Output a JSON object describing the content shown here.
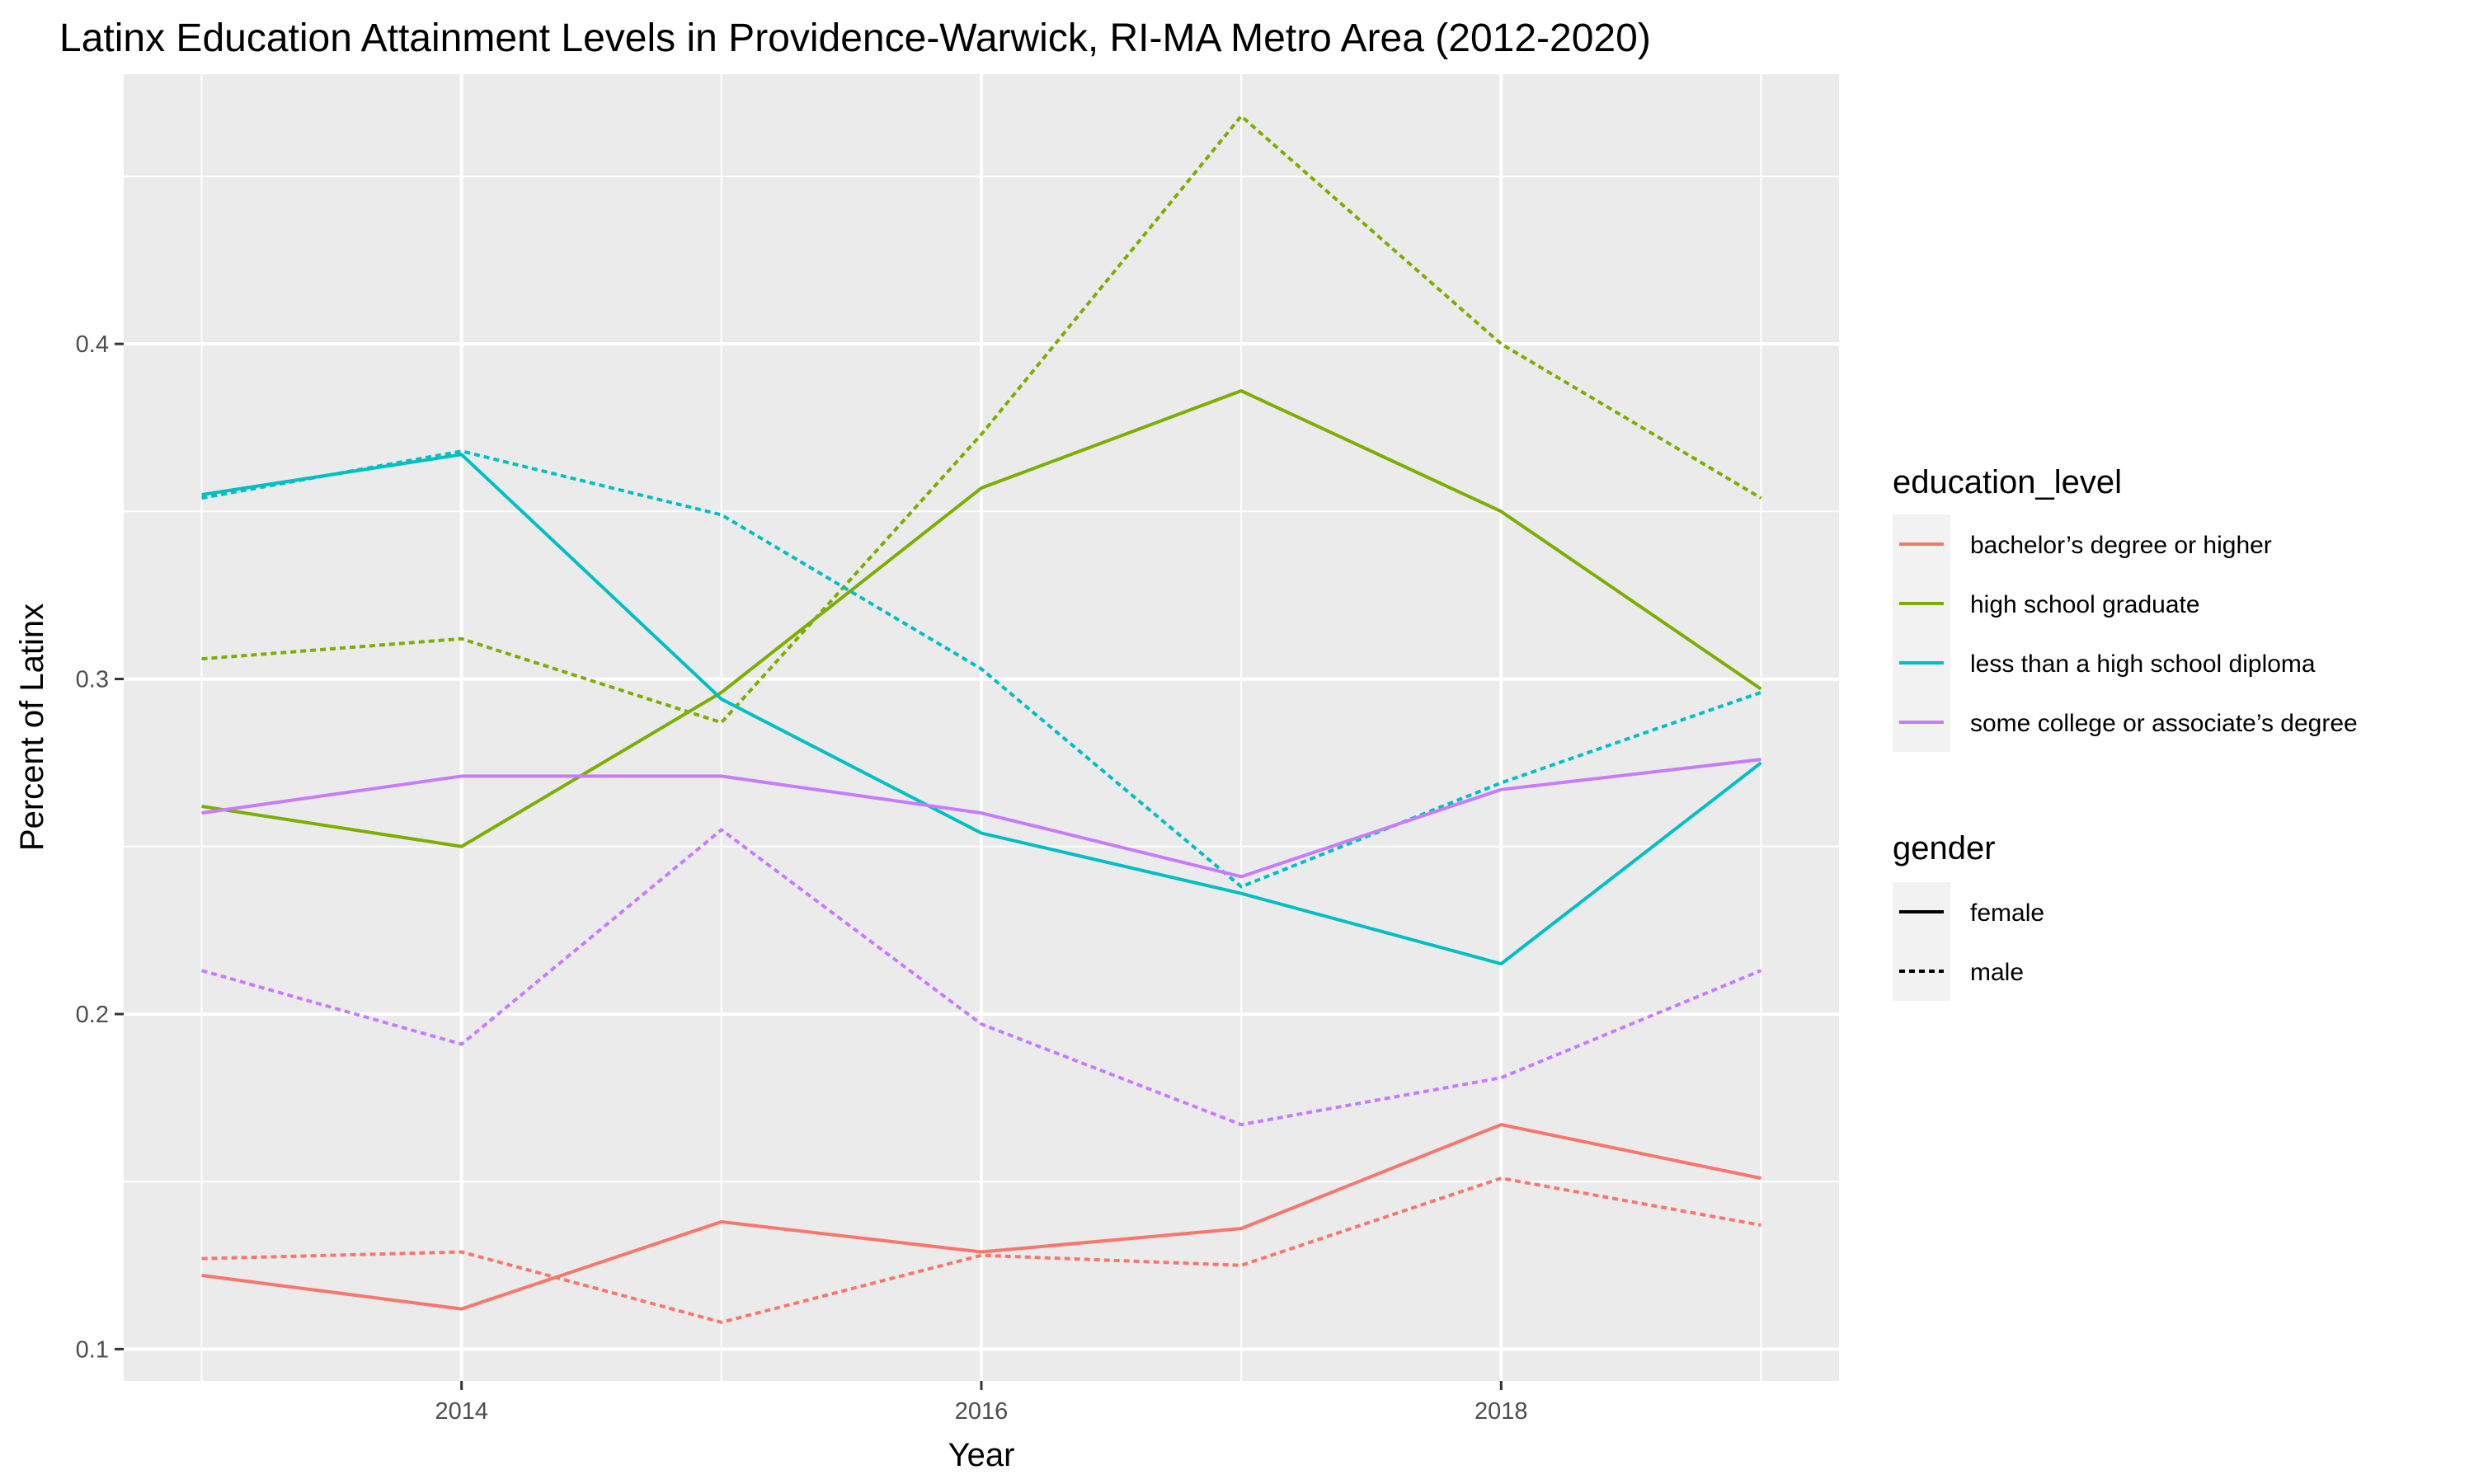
{
  "chart_data": {
    "type": "line",
    "title": "Latinx Education Attainment Levels in Providence-Warwick, RI-MA Metro Area (2012-2020)",
    "xlabel": "Year",
    "ylabel": "Percent of Latinx",
    "x": [
      2013,
      2014,
      2015,
      2016,
      2017,
      2018,
      2019
    ],
    "xlim": [
      2012.7,
      2019.3
    ],
    "ylim": [
      0.0905,
      0.4805
    ],
    "x_ticks": [
      2014,
      2016,
      2018
    ],
    "x_tick_labels": [
      "2014",
      "2016",
      "2018"
    ],
    "y_ticks": [
      0.1,
      0.2,
      0.3,
      0.4
    ],
    "y_tick_labels": [
      "0.1",
      "0.2",
      "0.3",
      "0.4"
    ],
    "grid": true,
    "legend_position": "right",
    "legends": [
      {
        "title": "education_level",
        "entries": [
          {
            "label": "bachelor’s degree or higher",
            "color": "#F8766D"
          },
          {
            "label": "high school graduate",
            "color": "#7CAE00"
          },
          {
            "label": "less than a high school diploma",
            "color": "#00BFC4"
          },
          {
            "label": "some college or associate’s degree",
            "color": "#C77CFF"
          }
        ]
      },
      {
        "title": "gender",
        "entries": [
          {
            "label": "female",
            "dash": "solid"
          },
          {
            "label": "male",
            "dash": "dotted"
          }
        ]
      }
    ],
    "series": [
      {
        "education_level": "bachelor’s degree or higher",
        "gender": "female",
        "color": "#F8766D",
        "dash": "solid",
        "values": [
          0.122,
          0.112,
          0.138,
          0.129,
          0.136,
          0.167,
          0.151
        ]
      },
      {
        "education_level": "bachelor’s degree or higher",
        "gender": "male",
        "color": "#F8766D",
        "dash": "dotted",
        "values": [
          0.127,
          0.129,
          0.108,
          0.128,
          0.125,
          0.151,
          0.137
        ]
      },
      {
        "education_level": "high school graduate",
        "gender": "female",
        "color": "#7CAE00",
        "dash": "solid",
        "values": [
          0.262,
          0.25,
          0.296,
          0.357,
          0.386,
          0.35,
          0.297
        ]
      },
      {
        "education_level": "high school graduate",
        "gender": "male",
        "color": "#7CAE00",
        "dash": "dotted",
        "values": [
          0.306,
          0.312,
          0.287,
          0.373,
          0.468,
          0.4,
          0.354
        ]
      },
      {
        "education_level": "less than a high school diploma",
        "gender": "female",
        "color": "#00BFC4",
        "dash": "solid",
        "values": [
          0.355,
          0.367,
          0.294,
          0.254,
          0.236,
          0.215,
          0.275
        ]
      },
      {
        "education_level": "less than a high school diploma",
        "gender": "male",
        "color": "#00BFC4",
        "dash": "dotted",
        "values": [
          0.354,
          0.368,
          0.349,
          0.303,
          0.238,
          0.269,
          0.296
        ]
      },
      {
        "education_level": "some college or associate’s degree",
        "gender": "female",
        "color": "#C77CFF",
        "dash": "solid",
        "values": [
          0.26,
          0.271,
          0.271,
          0.26,
          0.241,
          0.267,
          0.276
        ]
      },
      {
        "education_level": "some college or associate’s degree",
        "gender": "male",
        "color": "#C77CFF",
        "dash": "dotted",
        "values": [
          0.213,
          0.191,
          0.255,
          0.197,
          0.167,
          0.181,
          0.213
        ]
      }
    ]
  }
}
